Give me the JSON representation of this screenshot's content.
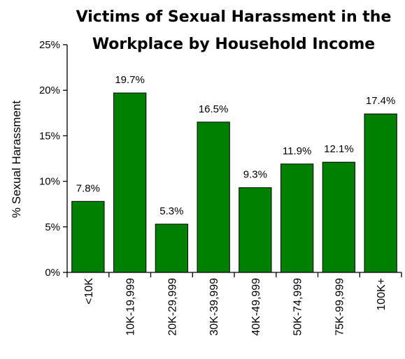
{
  "chart_data": {
    "type": "bar",
    "title_lines": [
      "Victims of Sexual Harassment in the",
      "Workplace by Household Income"
    ],
    "ylabel": "% Sexual Harassment",
    "xlabel": "",
    "ylim": [
      0,
      25
    ],
    "y_ticks": [
      {
        "value": 0,
        "label": "0%"
      },
      {
        "value": 5,
        "label": "5%"
      },
      {
        "value": 10,
        "label": "10%"
      },
      {
        "value": 15,
        "label": "15%"
      },
      {
        "value": 20,
        "label": "20%"
      },
      {
        "value": 25,
        "label": "25%"
      }
    ],
    "categories": [
      "<10K",
      "10K-19,999",
      "20K-29,999",
      "30K-39,999",
      "40K-49,999",
      "50K-74,999",
      "75K-99,999",
      "100K+"
    ],
    "values": [
      7.8,
      19.7,
      5.3,
      16.5,
      9.3,
      11.9,
      12.1,
      17.4
    ],
    "data_labels": [
      "7.8%",
      "19.7%",
      "5.3%",
      "16.5%",
      "9.3%",
      "11.9%",
      "12.1%",
      "17.4%"
    ],
    "bar_color": "#008000",
    "grid": false,
    "legend": "none"
  }
}
